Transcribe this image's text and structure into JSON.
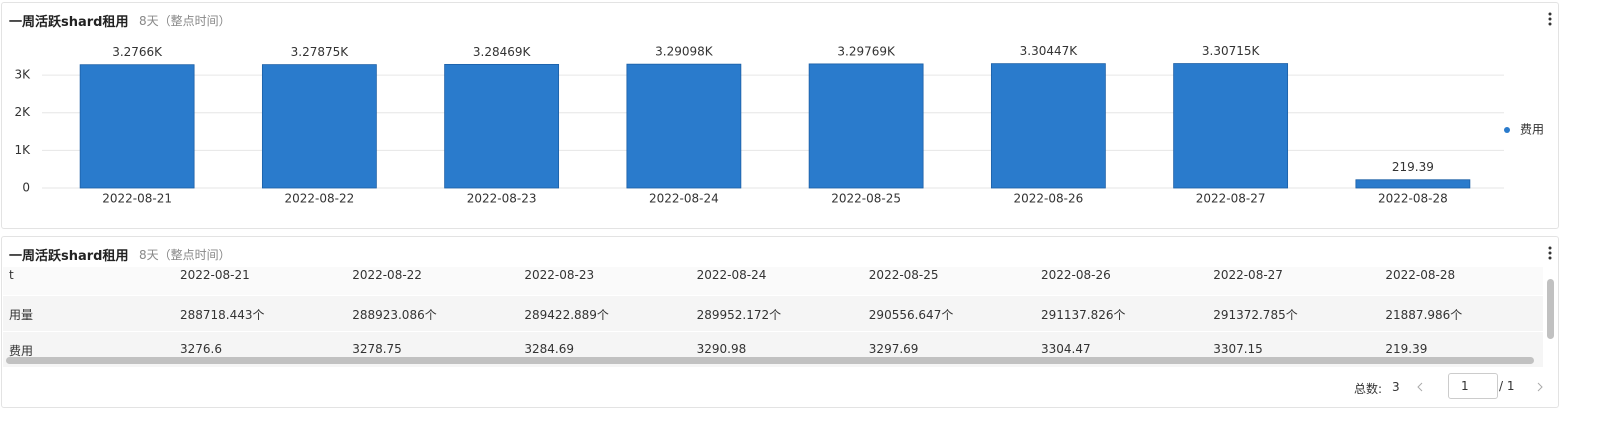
{
  "chart_panel": {
    "title": "一周活跃shard租用",
    "subtitle": "8天（整点时间）"
  },
  "chart_data": {
    "type": "bar",
    "categories": [
      "2022-08-21",
      "2022-08-22",
      "2022-08-23",
      "2022-08-24",
      "2022-08-25",
      "2022-08-26",
      "2022-08-27",
      "2022-08-28"
    ],
    "series": [
      {
        "name": "费用",
        "color": "#2a7bcc",
        "values": [
          3276.6,
          3278.75,
          3284.69,
          3290.98,
          3297.69,
          3304.47,
          3307.15,
          219.39
        ],
        "value_labels": [
          "3.2766K",
          "3.27875K",
          "3.28469K",
          "3.29098K",
          "3.29769K",
          "3.30447K",
          "3.30715K",
          "219.39"
        ]
      }
    ],
    "ylim": [
      0,
      3800
    ],
    "yticks": [
      0,
      {
        "value": 1000,
        "label": "1K"
      },
      {
        "value": 2000,
        "label": "2K"
      },
      {
        "value": 3000,
        "label": "3K"
      }
    ],
    "grid": true,
    "legend": "right"
  },
  "table_panel": {
    "title": "一周活跃shard租用",
    "subtitle": "8天（整点时间）",
    "table": {
      "header": [
        "t",
        "2022-08-21",
        "2022-08-22",
        "2022-08-23",
        "2022-08-24",
        "2022-08-25",
        "2022-08-26",
        "2022-08-27",
        "2022-08-28"
      ],
      "rows": [
        [
          "用量",
          "288718.443个",
          "288923.086个",
          "289422.889个",
          "289952.172个",
          "290556.647个",
          "291137.826个",
          "291372.785个",
          "21887.986个"
        ],
        [
          "费用",
          "3276.6",
          "3278.75",
          "3284.69",
          "3290.98",
          "3297.69",
          "3304.47",
          "3307.15",
          "219.39"
        ]
      ]
    },
    "pagination": {
      "total_label": "总数:",
      "total": "3",
      "page": "1",
      "pages": "/ 1"
    }
  }
}
